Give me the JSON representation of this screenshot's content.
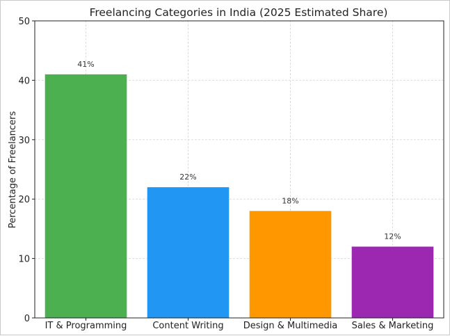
{
  "chart_data": {
    "type": "bar",
    "title": "Freelancing Categories in India (2025 Estimated Share)",
    "xlabel": "",
    "ylabel": "Percentage of Freelancers",
    "categories": [
      "IT & Programming",
      "Content Writing",
      "Design & Multimedia",
      "Sales & Marketing"
    ],
    "values": [
      41,
      22,
      18,
      12
    ],
    "data_labels": [
      "41%",
      "22%",
      "18%",
      "12%"
    ],
    "colors": [
      "#4CAF50",
      "#2196F3",
      "#FF9800",
      "#9C27B0"
    ],
    "ylim": [
      0,
      50
    ],
    "yticks": [
      0,
      10,
      20,
      30,
      40,
      50
    ],
    "grid": true
  }
}
